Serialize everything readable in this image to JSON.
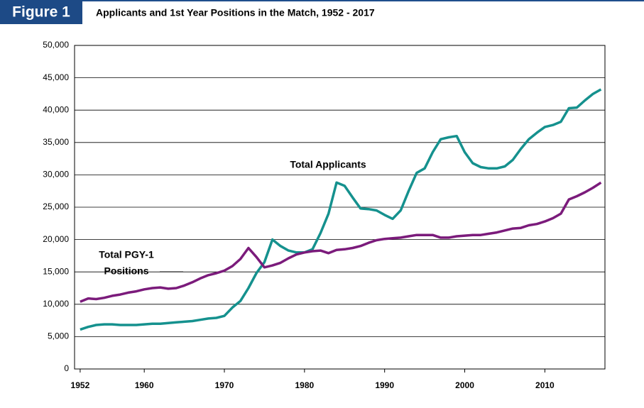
{
  "header": {
    "figure_label": "Figure 1"
  },
  "chart_data": {
    "type": "line",
    "title": "Applicants and 1st Year Positions in the Match, 1952 - 2017",
    "annotations": [
      "Total Applicants",
      "Total PGY-1",
      "Positions"
    ],
    "x": [
      1952,
      1953,
      1954,
      1955,
      1956,
      1957,
      1958,
      1959,
      1960,
      1961,
      1962,
      1963,
      1964,
      1965,
      1966,
      1967,
      1968,
      1969,
      1970,
      1971,
      1972,
      1973,
      1974,
      1975,
      1976,
      1977,
      1978,
      1979,
      1980,
      1981,
      1982,
      1983,
      1984,
      1985,
      1986,
      1987,
      1988,
      1989,
      1990,
      1991,
      1992,
      1993,
      1994,
      1995,
      1996,
      1997,
      1998,
      1999,
      2000,
      2001,
      2002,
      2003,
      2004,
      2005,
      2006,
      2007,
      2008,
      2009,
      2010,
      2011,
      2012,
      2013,
      2014,
      2015,
      2016,
      2017
    ],
    "series": [
      {
        "name": "Total Applicants",
        "color": "#15918e",
        "values": [
          6100,
          6500,
          6800,
          6900,
          6900,
          6800,
          6800,
          6800,
          6900,
          7000,
          7000,
          7100,
          7200,
          7300,
          7400,
          7600,
          7800,
          7900,
          8200,
          9500,
          10500,
          12500,
          14800,
          16500,
          20000,
          19000,
          18300,
          18000,
          18000,
          18500,
          21000,
          24000,
          28800,
          28300,
          26500,
          24800,
          24700,
          24500,
          23800,
          23200,
          24500,
          27500,
          30300,
          31000,
          33500,
          35500,
          35800,
          36000,
          33500,
          31800,
          31200,
          31000,
          31000,
          31300,
          32300,
          34000,
          35500,
          36500,
          37400,
          37700,
          38200,
          40300,
          40400,
          41500,
          42500,
          43200
        ]
      },
      {
        "name": "Total PGY-1 Positions",
        "color": "#7b1b7b",
        "values": [
          10400,
          10900,
          10800,
          11000,
          11300,
          11500,
          11800,
          12000,
          12300,
          12500,
          12600,
          12400,
          12500,
          12900,
          13400,
          14000,
          14500,
          14800,
          15200,
          15900,
          17000,
          18700,
          17300,
          15700,
          16000,
          16400,
          17100,
          17700,
          18000,
          18200,
          18300,
          17900,
          18400,
          18500,
          18700,
          19000,
          19500,
          19900,
          20100,
          20200,
          20300,
          20500,
          20700,
          20700,
          20700,
          20300,
          20300,
          20500,
          20600,
          20700,
          20700,
          20900,
          21100,
          21400,
          21700,
          21800,
          22200,
          22400,
          22800,
          23300,
          24000,
          26200,
          26700,
          27300,
          28000,
          28800
        ]
      }
    ],
    "xlim": [
      1951.3,
      2017.5
    ],
    "xticks": [
      1952,
      1960,
      1970,
      1980,
      1990,
      2000,
      2010
    ],
    "ylim": [
      0,
      50000
    ],
    "yticks": [
      0,
      {
        "value": 5000,
        "label": "5,000"
      },
      {
        "value": 10000,
        "label": "10,000"
      },
      {
        "value": 15000,
        "label": "15,000"
      },
      {
        "value": 20000,
        "label": "20,000"
      },
      {
        "value": 25000,
        "label": "25,000"
      },
      {
        "value": 30000,
        "label": "30,000"
      },
      {
        "value": 35000,
        "label": "35,000"
      },
      {
        "value": 40000,
        "label": "40,000"
      },
      {
        "value": 45000,
        "label": "45,000"
      },
      {
        "value": 50000,
        "label": "50,000"
      }
    ],
    "grid": true
  }
}
